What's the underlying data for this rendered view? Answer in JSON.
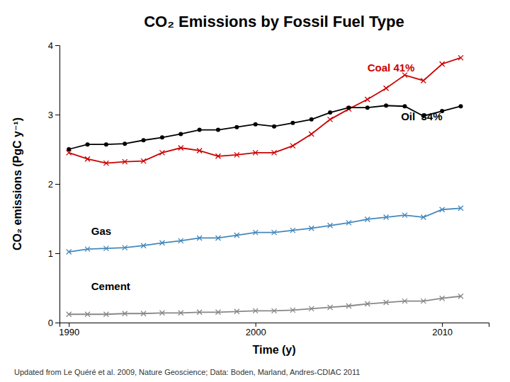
{
  "chart_data": {
    "type": "line",
    "title": "CO₂ Emissions by Fossil Fuel Type",
    "x_label": "Time (y)",
    "y_label": "CO₂ emissions (PgC y⁻¹)",
    "footnote": "Updated from Le Quéré et al. 2009, Nature Geoscience; Data: Boden, Marland, Andres-CDIAC 2011",
    "x": [
      1990,
      1991,
      1992,
      1993,
      1994,
      1995,
      1996,
      1997,
      1998,
      1999,
      2000,
      2001,
      2002,
      2003,
      2004,
      2005,
      2006,
      2007,
      2008,
      2009,
      2010,
      2011
    ],
    "series": [
      {
        "color": "#cc0000",
        "marker": "x",
        "values": [
          2.45,
          2.36,
          2.3,
          2.32,
          2.33,
          2.45,
          2.52,
          2.48,
          2.4,
          2.42,
          2.45,
          2.45,
          2.55,
          2.72,
          2.93,
          3.08,
          3.22,
          3.38,
          3.57,
          3.49,
          3.73,
          3.82
        ]
      },
      {
        "color": "#000000",
        "marker": "circle",
        "values": [
          2.5,
          2.57,
          2.57,
          2.58,
          2.63,
          2.67,
          2.72,
          2.78,
          2.78,
          2.82,
          2.86,
          2.83,
          2.88,
          2.93,
          3.03,
          3.1,
          3.1,
          3.13,
          3.12,
          2.98,
          3.05,
          3.12
        ]
      },
      {
        "color": "#4488bb",
        "marker": "x",
        "values": [
          1.02,
          1.06,
          1.07,
          1.08,
          1.11,
          1.15,
          1.18,
          1.22,
          1.22,
          1.26,
          1.3,
          1.3,
          1.33,
          1.36,
          1.4,
          1.44,
          1.49,
          1.52,
          1.55,
          1.52,
          1.63,
          1.65
        ]
      },
      {
        "color": "#888888",
        "marker": "x",
        "values": [
          0.12,
          0.12,
          0.12,
          0.13,
          0.13,
          0.14,
          0.14,
          0.15,
          0.15,
          0.16,
          0.17,
          0.17,
          0.18,
          0.2,
          0.22,
          0.24,
          0.27,
          0.29,
          0.31,
          0.31,
          0.35,
          0.38
        ]
      }
    ],
    "annotations": [
      {
        "text": "Coal 41%",
        "x": 2006.0,
        "y": 3.62,
        "color": "#cc0000"
      },
      {
        "text": "Oil  34%",
        "x": 2007.8,
        "y": 2.92,
        "color": "#000000"
      },
      {
        "text": "Gas",
        "x": 1991.2,
        "y": 1.27,
        "color": "#000000"
      },
      {
        "text": "Cement",
        "x": 1991.2,
        "y": 0.47,
        "color": "#000000"
      }
    ],
    "xlim": [
      1989.5,
      2012.5
    ],
    "ylim": [
      0,
      4
    ],
    "xticks": [
      1990,
      2000,
      2010
    ],
    "yticks": [
      0,
      1,
      2,
      3,
      4
    ],
    "grid": false
  }
}
